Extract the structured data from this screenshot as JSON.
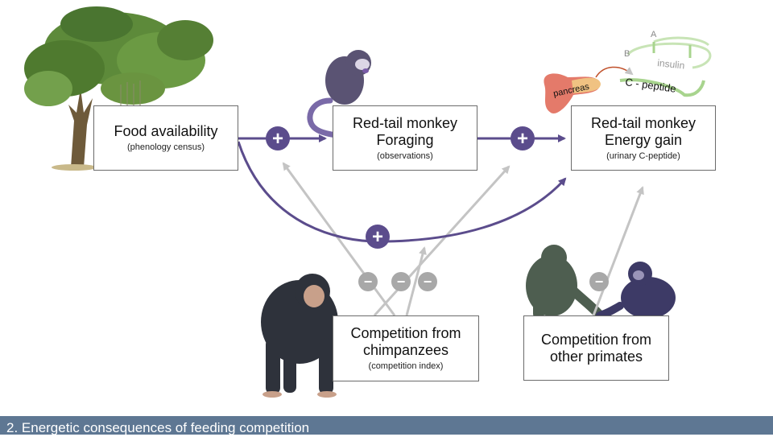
{
  "boxes": {
    "food": {
      "title": "Food availability",
      "subtitle": "(phenology census)"
    },
    "foraging": {
      "title_line1": "Red-tail monkey",
      "title_line2": "Foraging",
      "subtitle": "(observations)"
    },
    "energy": {
      "title_line1": "Red-tail monkey",
      "title_line2": "Energy gain",
      "subtitle": "(urinary C-peptide)"
    },
    "chimps": {
      "title_line1": "Competition from",
      "title_line2": "chimpanzees",
      "subtitle": "(competition index)"
    },
    "primates": {
      "title_line1": "Competition from",
      "title_line2": "other primates"
    }
  },
  "signs": {
    "positive": "+",
    "negative": "−"
  },
  "insulin_graphic": {
    "chain_a": "A",
    "chain_b": "B",
    "insulin": "insulin",
    "c_peptide": "C - peptide",
    "pancreas": "pancreas"
  },
  "footer": {
    "text": "2. Energetic consequences of feeding competition"
  },
  "colors": {
    "positive_arrow": "#5b4c8c",
    "negative_arrow": "#c4c4c4",
    "footer_bar": "#5e7793",
    "insulin_chain": "#b9dca4",
    "pancreas": "#e07868"
  }
}
